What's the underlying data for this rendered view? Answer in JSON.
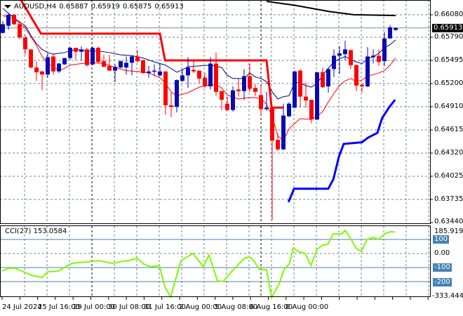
{
  "header": {
    "symbol": "AUDUSD,H4",
    "open": "0.65887",
    "high": "0.65919",
    "low": "0.65875",
    "close": "0.65913"
  },
  "colors": {
    "bull": "#0a0ab4",
    "bear": "#ff0000",
    "cci": "#7cfc00",
    "levels": "#4682b4",
    "grid": "#708090"
  },
  "price_axis": {
    "ticks": [
      "0.66080",
      "0.65790",
      "0.65495",
      "0.65200",
      "0.64910",
      "0.64615",
      "0.64320",
      "0.64025",
      "0.63735",
      "0.63440"
    ],
    "current": "0.65913"
  },
  "cci_panel": {
    "label": "CCI(27) 153.0584",
    "ticks": {
      "max": "185.9198",
      "l100": "100",
      "zero": "0.00",
      "m100": "-100",
      "m200": "-200",
      "min": "-333.4445"
    }
  },
  "time_axis": [
    "24 Jul 2024",
    "25 Jul 16:00",
    "29 Jul 00:00",
    "30 Jul 08:00",
    "31 Jul 16:00",
    "2 Aug 00:00",
    "5 Aug 08:00",
    "6 Aug 16:00",
    "8 Aug 00:00"
  ],
  "chart_data": {
    "type": "candlestick",
    "ylim": [
      0.6344,
      0.6614
    ],
    "candles_ohlc": [
      [
        0.6585,
        0.66,
        0.6584,
        0.6596
      ],
      [
        0.6594,
        0.661,
        0.6589,
        0.6608
      ],
      [
        0.6608,
        0.6609,
        0.6595,
        0.6596
      ],
      [
        0.6596,
        0.66,
        0.6577,
        0.6579
      ],
      [
        0.6579,
        0.6582,
        0.6557,
        0.6564
      ],
      [
        0.6564,
        0.6564,
        0.654,
        0.6541
      ],
      [
        0.6541,
        0.6549,
        0.6524,
        0.6535
      ],
      [
        0.6536,
        0.6537,
        0.6512,
        0.6532
      ],
      [
        0.6532,
        0.6559,
        0.6528,
        0.6554
      ],
      [
        0.6555,
        0.6558,
        0.6532,
        0.6536
      ],
      [
        0.6536,
        0.6547,
        0.6534,
        0.6546
      ],
      [
        0.6545,
        0.6553,
        0.6544,
        0.6553
      ],
      [
        0.6553,
        0.6567,
        0.6551,
        0.6566
      ],
      [
        0.6566,
        0.6566,
        0.6551,
        0.6561
      ],
      [
        0.6561,
        0.6568,
        0.655,
        0.6564
      ],
      [
        0.6564,
        0.6566,
        0.6542,
        0.6544
      ],
      [
        0.6545,
        0.6567,
        0.6544,
        0.6566
      ],
      [
        0.6566,
        0.6568,
        0.6547,
        0.6548
      ],
      [
        0.6549,
        0.6557,
        0.6541,
        0.6542
      ],
      [
        0.6543,
        0.6557,
        0.6537,
        0.6537
      ],
      [
        0.6537,
        0.6545,
        0.6523,
        0.6542
      ],
      [
        0.6541,
        0.655,
        0.654,
        0.6549
      ],
      [
        0.6541,
        0.6555,
        0.6532,
        0.6547
      ],
      [
        0.6547,
        0.6556,
        0.6531,
        0.6555
      ],
      [
        0.6555,
        0.6563,
        0.6547,
        0.6549
      ],
      [
        0.655,
        0.6551,
        0.6533,
        0.6534
      ],
      [
        0.6534,
        0.6543,
        0.6528,
        0.6536
      ],
      [
        0.6536,
        0.6545,
        0.653,
        0.6537
      ],
      [
        0.6531,
        0.6546,
        0.653,
        0.6536
      ],
      [
        0.6536,
        0.6536,
        0.6481,
        0.6493
      ],
      [
        0.6493,
        0.6509,
        0.6478,
        0.6491
      ],
      [
        0.6491,
        0.6526,
        0.6484,
        0.6525
      ],
      [
        0.6524,
        0.6539,
        0.6523,
        0.6531
      ],
      [
        0.6531,
        0.6554,
        0.6515,
        0.6541
      ],
      [
        0.6538,
        0.655,
        0.6534,
        0.6536
      ],
      [
        0.6537,
        0.6537,
        0.6521,
        0.6527
      ],
      [
        0.6528,
        0.6534,
        0.6515,
        0.6517
      ],
      [
        0.6517,
        0.6554,
        0.6513,
        0.6546
      ],
      [
        0.6546,
        0.656,
        0.6505,
        0.651
      ],
      [
        0.6511,
        0.6511,
        0.6487,
        0.65
      ],
      [
        0.6495,
        0.6504,
        0.6486,
        0.6487
      ],
      [
        0.6487,
        0.6517,
        0.6485,
        0.6512
      ],
      [
        0.6513,
        0.6527,
        0.6504,
        0.6511
      ],
      [
        0.6511,
        0.6539,
        0.65,
        0.653
      ],
      [
        0.653,
        0.6546,
        0.651,
        0.6514
      ],
      [
        0.6515,
        0.652,
        0.6505,
        0.651
      ],
      [
        0.6506,
        0.6517,
        0.6481,
        0.6488
      ],
      [
        0.6488,
        0.651,
        0.6486,
        0.649
      ],
      [
        0.649,
        0.649,
        0.6347,
        0.6448
      ],
      [
        0.6449,
        0.6457,
        0.6435,
        0.6437
      ],
      [
        0.6437,
        0.6495,
        0.6436,
        0.648
      ],
      [
        0.6479,
        0.6497,
        0.6478,
        0.6495
      ],
      [
        0.649,
        0.6537,
        0.6489,
        0.6536
      ],
      [
        0.6537,
        0.6539,
        0.649,
        0.6504
      ],
      [
        0.6504,
        0.6522,
        0.649,
        0.6499
      ],
      [
        0.65,
        0.65,
        0.647,
        0.6475
      ],
      [
        0.6475,
        0.6535,
        0.6474,
        0.6535
      ],
      [
        0.6535,
        0.6541,
        0.6515,
        0.6516
      ],
      [
        0.6517,
        0.654,
        0.6509,
        0.6539
      ],
      [
        0.6539,
        0.6564,
        0.6529,
        0.6556
      ],
      [
        0.6556,
        0.6568,
        0.6533,
        0.6559
      ],
      [
        0.6558,
        0.6575,
        0.655,
        0.6564
      ],
      [
        0.6563,
        0.6564,
        0.6539,
        0.6544
      ],
      [
        0.6544,
        0.6545,
        0.6511,
        0.6518
      ],
      [
        0.6519,
        0.6521,
        0.6509,
        0.6517
      ],
      [
        0.6517,
        0.6567,
        0.6516,
        0.6555
      ],
      [
        0.6554,
        0.6564,
        0.6546,
        0.6556
      ],
      [
        0.6556,
        0.6564,
        0.6543,
        0.6548
      ],
      [
        0.6549,
        0.6586,
        0.6543,
        0.6578
      ],
      [
        0.6578,
        0.6595,
        0.6577,
        0.6592
      ],
      [
        0.65887,
        0.65919,
        0.65875,
        0.65913
      ]
    ],
    "overlays": [
      {
        "color": "#000000",
        "width": 2,
        "points": [
          [
            47,
            0.6625
          ],
          [
            52,
            0.662
          ],
          [
            58.25,
            0.6612
          ],
          [
            62.6,
            0.6608
          ],
          [
            70,
            0.6607
          ]
        ]
      },
      {
        "color": "#000080",
        "width": 1,
        "points": [
          [
            0,
            0.6616
          ],
          [
            2,
            0.6604
          ],
          [
            4,
            0.6594
          ],
          [
            5,
            0.6582
          ],
          [
            6,
            0.6571
          ],
          [
            7,
            0.6564
          ],
          [
            8,
            0.656
          ],
          [
            9,
            0.6558
          ],
          [
            11,
            0.656
          ],
          [
            13,
            0.6564
          ],
          [
            15,
            0.6562
          ],
          [
            17,
            0.6562
          ],
          [
            19,
            0.656
          ],
          [
            21,
            0.6557
          ],
          [
            23,
            0.6556
          ],
          [
            25,
            0.6553
          ],
          [
            27,
            0.6548
          ],
          [
            29,
            0.6544
          ],
          [
            31,
            0.6535
          ],
          [
            32,
            0.6538
          ],
          [
            33,
            0.6542
          ],
          [
            35,
            0.6543
          ],
          [
            37,
            0.6544
          ],
          [
            39,
            0.6541
          ],
          [
            40,
            0.6531
          ],
          [
            41,
            0.6527
          ],
          [
            43,
            0.6527
          ],
          [
            44,
            0.6534
          ],
          [
            45,
            0.6529
          ],
          [
            46,
            0.6527
          ],
          [
            47,
            0.6523
          ],
          [
            48,
            0.651
          ],
          [
            49,
            0.6501
          ],
          [
            50,
            0.6504
          ],
          [
            51,
            0.6505
          ],
          [
            52,
            0.6522
          ],
          [
            53,
            0.6521
          ],
          [
            54,
            0.6518
          ],
          [
            55,
            0.6516
          ],
          [
            56,
            0.6521
          ],
          [
            57,
            0.6531
          ],
          [
            58,
            0.654
          ],
          [
            59,
            0.6548
          ],
          [
            60,
            0.6552
          ],
          [
            61,
            0.6555
          ],
          [
            62,
            0.6551
          ],
          [
            63,
            0.6548
          ],
          [
            64,
            0.6546
          ],
          [
            65,
            0.6552
          ],
          [
            66,
            0.6555
          ],
          [
            67,
            0.6559
          ],
          [
            68,
            0.6566
          ],
          [
            69,
            0.657
          ],
          [
            70,
            0.6576
          ]
        ]
      },
      {
        "color": "#ff0000",
        "width": 1,
        "points": [
          [
            0,
            0.6607
          ],
          [
            2,
            0.6603
          ],
          [
            4,
            0.6591
          ],
          [
            5,
            0.658
          ],
          [
            6,
            0.6569
          ],
          [
            7,
            0.6555
          ],
          [
            8,
            0.6546
          ],
          [
            9,
            0.6542
          ],
          [
            10,
            0.6537
          ],
          [
            11,
            0.654
          ],
          [
            12,
            0.6544
          ],
          [
            14,
            0.6546
          ],
          [
            16,
            0.6547
          ],
          [
            18,
            0.6546
          ],
          [
            20,
            0.6541
          ],
          [
            22,
            0.6537
          ],
          [
            24,
            0.6536
          ],
          [
            26,
            0.6534
          ],
          [
            28,
            0.6528
          ],
          [
            29,
            0.6521
          ],
          [
            30,
            0.651
          ],
          [
            31,
            0.6505
          ],
          [
            33,
            0.6509
          ],
          [
            35,
            0.6516
          ],
          [
            37,
            0.6519
          ],
          [
            38,
            0.6519
          ],
          [
            39,
            0.6515
          ],
          [
            40,
            0.6506
          ],
          [
            42,
            0.6501
          ],
          [
            44,
            0.6503
          ],
          [
            46,
            0.6502
          ],
          [
            47,
            0.6494
          ],
          [
            48,
            0.6479
          ],
          [
            49,
            0.6454
          ],
          [
            50,
            0.6448
          ],
          [
            51,
            0.6463
          ],
          [
            52,
            0.647
          ],
          [
            53,
            0.6476
          ],
          [
            55,
            0.6475
          ],
          [
            56,
            0.6479
          ],
          [
            57,
            0.6485
          ],
          [
            58,
            0.6497
          ],
          [
            59,
            0.6508
          ],
          [
            60,
            0.6518
          ],
          [
            61,
            0.6524
          ],
          [
            62,
            0.6527
          ],
          [
            63,
            0.6523
          ],
          [
            64,
            0.6525
          ],
          [
            65,
            0.653
          ],
          [
            66,
            0.6532
          ],
          [
            67,
            0.6534
          ],
          [
            68,
            0.6537
          ],
          [
            69,
            0.6544
          ],
          [
            70,
            0.6553
          ]
        ]
      },
      {
        "color": "#ff0000",
        "width": 3,
        "points": [
          [
            3.2,
            0.6627
          ],
          [
            6.8,
            0.6584
          ],
          [
            28,
            0.6584
          ],
          [
            28.9,
            0.655
          ],
          [
            47,
            0.655
          ],
          [
            47.9,
            0.649
          ],
          [
            50,
            0.649
          ]
        ]
      },
      {
        "color": "#0000ff",
        "width": 3,
        "points": [
          [
            50.9,
            0.637
          ],
          [
            51.9,
            0.6387
          ],
          [
            58,
            0.6387
          ],
          [
            58.9,
            0.6399
          ],
          [
            59.9,
            0.6428
          ],
          [
            60.75,
            0.6444
          ],
          [
            64,
            0.6446
          ],
          [
            65.1,
            0.6452
          ],
          [
            66.75,
            0.6458
          ],
          [
            67.6,
            0.6477
          ],
          [
            68.9,
            0.6491
          ],
          [
            69.9,
            0.65
          ]
        ]
      }
    ],
    "cci": {
      "period": 27,
      "ylim": [
        -333.4445,
        185.9198
      ],
      "levels": [
        100,
        -100,
        -200
      ],
      "points": [
        [
          -0.1,
          -125
        ],
        [
          1.1,
          -105
        ],
        [
          2.25,
          -105
        ],
        [
          5.1,
          -155
        ],
        [
          7,
          -170
        ],
        [
          8,
          -130
        ],
        [
          9.9,
          -125
        ],
        [
          12,
          -75
        ],
        [
          13.25,
          -65
        ],
        [
          15.1,
          -60
        ],
        [
          17,
          -50
        ],
        [
          19.5,
          -70
        ],
        [
          21.4,
          -55
        ],
        [
          22.4,
          -50
        ],
        [
          24,
          -35
        ],
        [
          25.1,
          -75
        ],
        [
          26.4,
          -95
        ],
        [
          27.9,
          -85
        ],
        [
          28.9,
          -240
        ],
        [
          29.9,
          -310
        ],
        [
          31.75,
          -50
        ],
        [
          33.9,
          0
        ],
        [
          35.75,
          -95
        ],
        [
          36.75,
          -10
        ],
        [
          38.25,
          -195
        ],
        [
          39.25,
          -200
        ],
        [
          40.75,
          -130
        ],
        [
          43,
          -35
        ],
        [
          43.9,
          -25
        ],
        [
          44.5,
          -40
        ],
        [
          45.75,
          -115
        ],
        [
          47,
          -115
        ],
        [
          47.9,
          -315
        ],
        [
          49.25,
          -215
        ],
        [
          50.1,
          -115
        ],
        [
          51.1,
          -70
        ],
        [
          51.75,
          40
        ],
        [
          52.6,
          15
        ],
        [
          53.9,
          0
        ],
        [
          54.9,
          -85
        ],
        [
          56,
          30
        ],
        [
          57,
          60
        ],
        [
          57.9,
          65
        ],
        [
          58.9,
          140
        ],
        [
          60.4,
          140
        ],
        [
          61,
          165
        ],
        [
          62,
          105
        ],
        [
          63,
          35
        ],
        [
          63.9,
          15
        ],
        [
          64.9,
          100
        ],
        [
          66.1,
          115
        ],
        [
          66.9,
          100
        ],
        [
          68.25,
          145
        ],
        [
          69.1,
          155
        ],
        [
          69.9,
          153.0584
        ]
      ]
    }
  }
}
